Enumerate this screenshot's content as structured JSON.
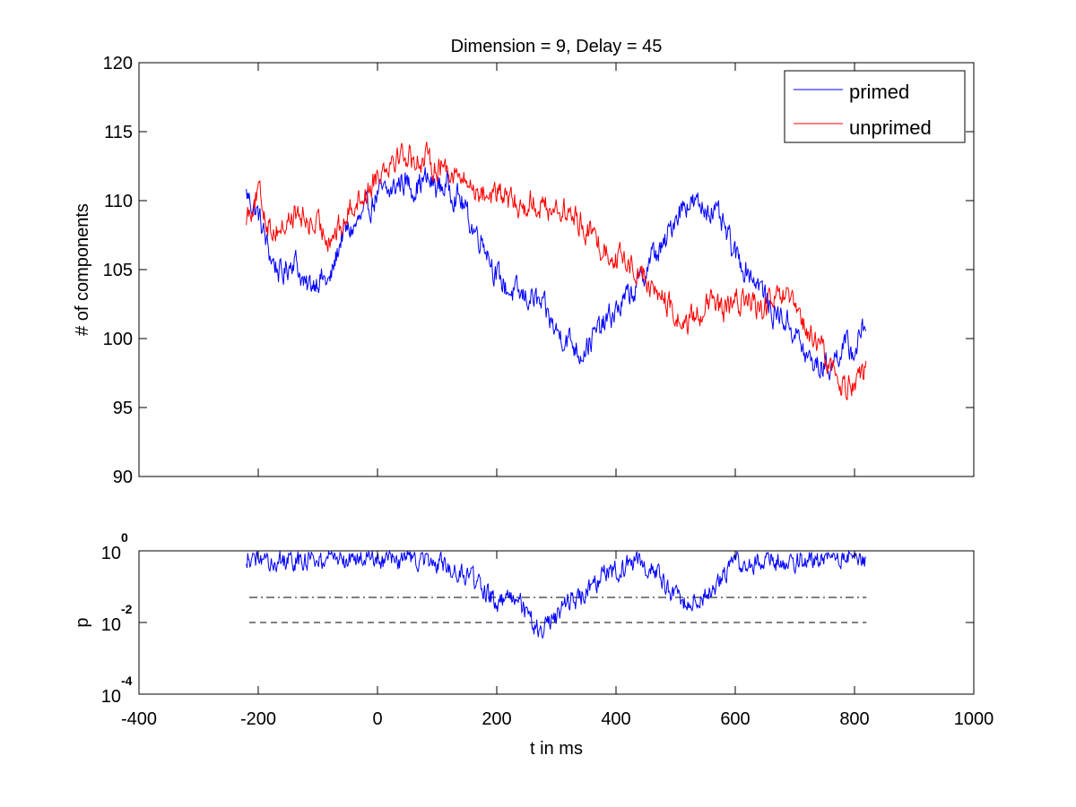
{
  "colors": {
    "primed": "#0000ff",
    "unprimed": "#ff0000",
    "axes": "#000000",
    "background": "#ffffff"
  },
  "chart_data": [
    {
      "type": "line",
      "title": "Dimension  = 9, Delay = 45",
      "xlabel": "",
      "ylabel": "# of components",
      "xlim": [
        -400,
        1000
      ],
      "ylim": [
        90,
        120
      ],
      "yticks": [
        90,
        95,
        100,
        105,
        110,
        115,
        120
      ],
      "ytick_labels": [
        "90",
        "95",
        "100",
        "105",
        "110",
        "115",
        "120"
      ],
      "legend": {
        "placement": "top-right",
        "entries": [
          "primed",
          "unprimed"
        ]
      },
      "noise": 1.6,
      "series": [
        {
          "name": "primed",
          "color": "#0000ff",
          "anchors": [
            [
              -220,
              110.5
            ],
            [
              -200,
              109
            ],
            [
              -180,
              106
            ],
            [
              -160,
              104.5
            ],
            [
              -140,
              106
            ],
            [
              -120,
              103.5
            ],
            [
              -100,
              104.5
            ],
            [
              -80,
              104
            ],
            [
              -60,
              107.5
            ],
            [
              -40,
              108
            ],
            [
              -20,
              109
            ],
            [
              0,
              110.5
            ],
            [
              20,
              110.5
            ],
            [
              40,
              111.5
            ],
            [
              60,
              111
            ],
            [
              80,
              111.5
            ],
            [
              100,
              111
            ],
            [
              120,
              111
            ],
            [
              140,
              110
            ],
            [
              160,
              108
            ],
            [
              180,
              107
            ],
            [
              200,
              104.5
            ],
            [
              220,
              103.5
            ],
            [
              240,
              103
            ],
            [
              260,
              103
            ],
            [
              280,
              102
            ],
            [
              300,
              100.5
            ],
            [
              320,
              100
            ],
            [
              340,
              99
            ],
            [
              360,
              100
            ],
            [
              380,
              101
            ],
            [
              400,
              102
            ],
            [
              420,
              103
            ],
            [
              440,
              104
            ],
            [
              460,
              106
            ],
            [
              480,
              106.5
            ],
            [
              500,
              109
            ],
            [
              520,
              110
            ],
            [
              540,
              109.5
            ],
            [
              560,
              109.5
            ],
            [
              580,
              108
            ],
            [
              600,
              106
            ],
            [
              620,
              105
            ],
            [
              640,
              104
            ],
            [
              660,
              102
            ],
            [
              680,
              101.5
            ],
            [
              700,
              100.5
            ],
            [
              720,
              98.5
            ],
            [
              740,
              98
            ],
            [
              760,
              98
            ],
            [
              780,
              99.5
            ],
            [
              800,
              99
            ],
            [
              820,
              101.5
            ]
          ]
        },
        {
          "name": "unprimed",
          "color": "#ff0000",
          "anchors": [
            [
              -220,
              109
            ],
            [
              -200,
              110.5
            ],
            [
              -180,
              108
            ],
            [
              -160,
              108
            ],
            [
              -140,
              109
            ],
            [
              -120,
              108.5
            ],
            [
              -100,
              108
            ],
            [
              -80,
              107.5
            ],
            [
              -60,
              108
            ],
            [
              -40,
              110
            ],
            [
              -20,
              110.5
            ],
            [
              0,
              112
            ],
            [
              20,
              113
            ],
            [
              40,
              113.5
            ],
            [
              60,
              113
            ],
            [
              80,
              113
            ],
            [
              100,
              112.5
            ],
            [
              120,
              112.5
            ],
            [
              140,
              111.5
            ],
            [
              160,
              111
            ],
            [
              180,
              110.5
            ],
            [
              200,
              110.5
            ],
            [
              220,
              110
            ],
            [
              240,
              109.5
            ],
            [
              260,
              110
            ],
            [
              280,
              109.5
            ],
            [
              300,
              109.5
            ],
            [
              320,
              109
            ],
            [
              340,
              108.5
            ],
            [
              360,
              107.5
            ],
            [
              380,
              106.5
            ],
            [
              400,
              106
            ],
            [
              420,
              105.5
            ],
            [
              440,
              105
            ],
            [
              460,
              103.5
            ],
            [
              480,
              103
            ],
            [
              500,
              101.5
            ],
            [
              520,
              101
            ],
            [
              540,
              102
            ],
            [
              560,
              102.5
            ],
            [
              580,
              102
            ],
            [
              600,
              102.5
            ],
            [
              620,
              103
            ],
            [
              640,
              102
            ],
            [
              660,
              102.5
            ],
            [
              680,
              103
            ],
            [
              700,
              102
            ],
            [
              720,
              100.5
            ],
            [
              740,
              99.5
            ],
            [
              760,
              98
            ],
            [
              780,
              96.5
            ],
            [
              800,
              97
            ],
            [
              820,
              97.5
            ]
          ]
        }
      ]
    },
    {
      "type": "line",
      "title": "",
      "xlabel": "t in ms",
      "ylabel": "p",
      "xscale": "linear",
      "yscale": "log",
      "xlim": [
        -400,
        1000
      ],
      "ylim": [
        0.0001,
        1
      ],
      "xticks": [
        -400,
        -200,
        0,
        200,
        400,
        600,
        800,
        1000
      ],
      "xtick_labels": [
        "-400",
        "-200",
        "0",
        "200",
        "400",
        "600",
        "800",
        "1000"
      ],
      "yticks": [
        0.0001,
        0.01,
        1
      ],
      "ytick_labels": [
        {
          "base": "10",
          "exp": "-4"
        },
        {
          "base": "10",
          "exp": "-2"
        },
        {
          "base": "10",
          "exp": "0"
        }
      ],
      "reference_lines": [
        {
          "y": 0.05,
          "style": "dash-dot",
          "x_range": [
            -215,
            820
          ]
        },
        {
          "y": 0.01,
          "style": "dashed",
          "x_range": [
            -215,
            820
          ]
        }
      ],
      "noise_log10": 0.25,
      "series": [
        {
          "name": "",
          "color": "#0000ff",
          "anchors_log10p": [
            [
              -220,
              -0.15
            ],
            [
              -180,
              -0.2
            ],
            [
              -140,
              -0.3
            ],
            [
              -100,
              -0.2
            ],
            [
              -60,
              -0.3
            ],
            [
              -20,
              -0.2
            ],
            [
              0,
              -0.35
            ],
            [
              40,
              -0.25
            ],
            [
              80,
              -0.3
            ],
            [
              120,
              -0.4
            ],
            [
              140,
              -0.6
            ],
            [
              160,
              -0.8
            ],
            [
              180,
              -1.2
            ],
            [
              200,
              -1.4
            ],
            [
              220,
              -1.3
            ],
            [
              240,
              -1.5
            ],
            [
              260,
              -2.0
            ],
            [
              280,
              -2.2
            ],
            [
              300,
              -1.9
            ],
            [
              320,
              -1.4
            ],
            [
              340,
              -1.3
            ],
            [
              360,
              -1.0
            ],
            [
              380,
              -0.6
            ],
            [
              400,
              -0.5
            ],
            [
              420,
              -0.4
            ],
            [
              440,
              -0.3
            ],
            [
              460,
              -0.5
            ],
            [
              480,
              -0.9
            ],
            [
              500,
              -1.2
            ],
            [
              520,
              -1.5
            ],
            [
              540,
              -1.3
            ],
            [
              560,
              -1.1
            ],
            [
              580,
              -0.7
            ],
            [
              600,
              -0.4
            ],
            [
              640,
              -0.3
            ],
            [
              680,
              -0.25
            ],
            [
              720,
              -0.3
            ],
            [
              760,
              -0.15
            ],
            [
              800,
              -0.2
            ],
            [
              820,
              -0.3
            ]
          ]
        }
      ]
    }
  ]
}
